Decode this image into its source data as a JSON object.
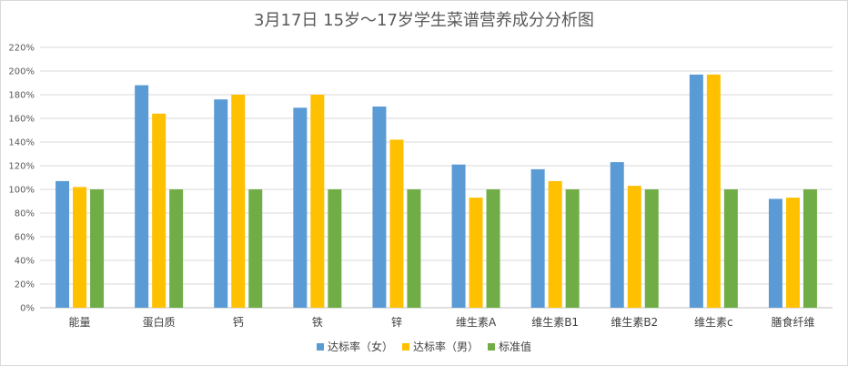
{
  "chart_data": {
    "type": "bar",
    "title": "3月17日 15岁～17岁学生菜谱营养成分分析图",
    "categories": [
      "能量",
      "蛋白质",
      "钙",
      "铁",
      "锌",
      "维生素A",
      "维生素B1",
      "维生素B2",
      "维生素c",
      "膳食纤维"
    ],
    "series": [
      {
        "name": "达标率（女）",
        "color": "#5b9bd5",
        "values": [
          107,
          188,
          176,
          169,
          170,
          121,
          117,
          123,
          197,
          92
        ]
      },
      {
        "name": "达标率（男）",
        "color": "#ffc000",
        "values": [
          102,
          164,
          180,
          180,
          142,
          93,
          107,
          103,
          197,
          93
        ]
      },
      {
        "name": "标准值",
        "color": "#70ad47",
        "values": [
          100,
          100,
          100,
          100,
          100,
          100,
          100,
          100,
          100,
          100
        ]
      }
    ],
    "ylim": [
      0,
      220
    ],
    "ytick_step": 20,
    "ytick_labels": [
      "0%",
      "20%",
      "40%",
      "60%",
      "80%",
      "100%",
      "120%",
      "140%",
      "160%",
      "180%",
      "200%",
      "220%"
    ],
    "grid": true,
    "legend_position": "bottom"
  }
}
